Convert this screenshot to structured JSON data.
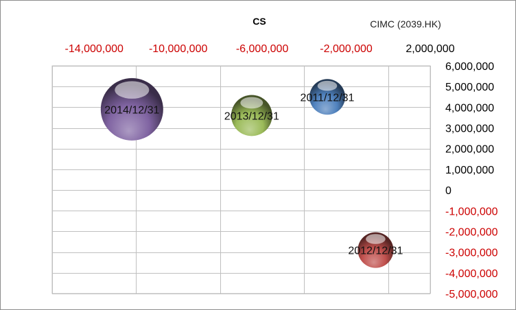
{
  "chart_data": {
    "type": "scatter",
    "subtype": "bubble",
    "title": "CS",
    "subtitle": "CIMC (2039.HK)",
    "xlim": [
      -16000000,
      2000000
    ],
    "ylim": [
      -5000000,
      6000000
    ],
    "x_ticks": [
      -14000000,
      -10000000,
      -6000000,
      -2000000,
      2000000
    ],
    "x_tick_labels": [
      "-14,000,000",
      "-10,000,000",
      "-6,000,000",
      "-2,000,000",
      "2,000,000"
    ],
    "x_gridlines": [
      -16000000,
      -12000000,
      -8000000,
      -4000000,
      0,
      2000000
    ],
    "x_axis_position": "top",
    "y_ticks": [
      6000000,
      5000000,
      4000000,
      3000000,
      2000000,
      1000000,
      0,
      -1000000,
      -2000000,
      -3000000,
      -4000000,
      -5000000
    ],
    "y_tick_labels": [
      "6,000,000",
      "5,000,000",
      "4,000,000",
      "3,000,000",
      "2,000,000",
      "1,000,000",
      "0",
      "-1,000,000",
      "-2,000,000",
      "-3,000,000",
      "-4,000,000",
      "-5,000,000"
    ],
    "y_axis_position": "right",
    "grid": true,
    "colors": {
      "positive_tick": "#000000",
      "negative_tick": "#cc0000",
      "gridline": "#bfbfbf",
      "plot_border": "#bfbfbf"
    },
    "points": [
      {
        "label": "2011/12/31",
        "x": -2900000,
        "y": 4500000,
        "size": 1.0,
        "color": "#4f81bd"
      },
      {
        "label": "2012/12/31",
        "x": -600000,
        "y": -2900000,
        "size": 1.0,
        "color": "#c0504d"
      },
      {
        "label": "2013/12/31",
        "x": -6500000,
        "y": 3600000,
        "size": 1.15,
        "color": "#9bbb59"
      },
      {
        "label": "2014/12/31",
        "x": -12200000,
        "y": 3900000,
        "size": 1.75,
        "color": "#8064a2"
      }
    ]
  }
}
